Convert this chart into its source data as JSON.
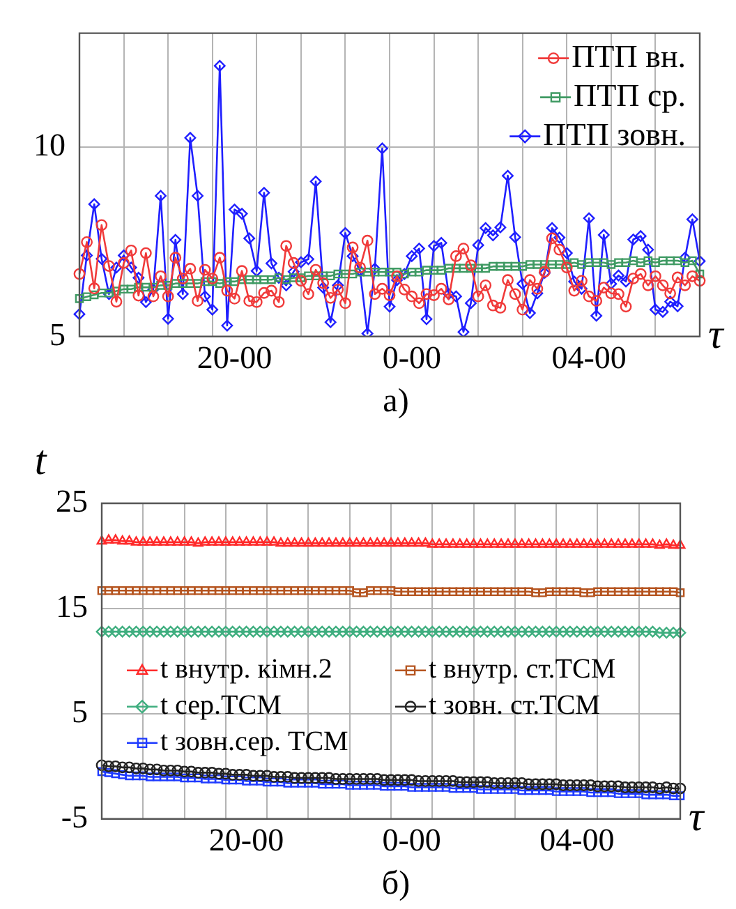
{
  "chart_data": [
    {
      "type": "line",
      "xlabel": "τ",
      "annotations": [
        "а)"
      ],
      "categories": [
        null,
        null,
        null,
        null,
        null,
        null,
        null,
        null,
        null,
        null,
        null,
        null,
        null,
        null,
        null,
        null,
        null,
        null,
        null,
        null,
        null,
        "20-00",
        null,
        null,
        null,
        null,
        null,
        null,
        null,
        null,
        null,
        null,
        null,
        null,
        null,
        null,
        null,
        null,
        null,
        null,
        null,
        null,
        null,
        null,
        null,
        "0-00",
        null,
        null,
        null,
        null,
        null,
        null,
        null,
        null,
        null,
        null,
        null,
        null,
        null,
        null,
        null,
        null,
        null,
        null,
        null,
        null,
        null,
        null,
        null,
        "04-00",
        null,
        null,
        null,
        null,
        null,
        null,
        null,
        null,
        null,
        null,
        null,
        null,
        null,
        null,
        null
      ],
      "series": [
        {
          "name": "ПТП вн.",
          "color": "#f03a3a",
          "marker": "circle",
          "values": [
            6.65,
            7.49,
            6.27,
            7.94,
            6.86,
            5.92,
            6.94,
            7.27,
            6.08,
            7.2,
            6.06,
            6.59,
            6.06,
            7.08,
            6.53,
            6.79,
            5.94,
            6.76,
            6.53,
            7.08,
            6.21,
            6.0,
            6.73,
            5.94,
            5.91,
            6.15,
            6.21,
            5.91,
            7.39,
            6.94,
            6.47,
            6.12,
            6.76,
            6.41,
            6.02,
            6.24,
            5.88,
            7.35,
            6.82,
            7.53,
            6.12,
            6.26,
            6.09,
            6.59,
            6.24,
            6.06,
            5.88,
            6.12,
            6.09,
            6.26,
            5.98,
            7.12,
            7.32,
            6.88,
            6.06,
            6.35,
            5.82,
            5.76,
            6.49,
            6.12,
            5.71,
            6.49,
            6.26,
            6.71,
            7.59,
            7.29,
            6.82,
            6.21,
            6.47,
            6.06,
            5.94,
            6.29,
            6.14,
            6.12,
            5.79,
            6.53,
            6.65,
            6.35,
            6.59,
            6.35,
            6.14,
            6.56,
            6.35,
            6.59,
            6.47
          ]
        },
        {
          "name": "ПТП ср.",
          "color": "#3f9a63",
          "marker": "square",
          "values": [
            6.0,
            6.05,
            6.1,
            6.15,
            6.15,
            6.2,
            6.25,
            6.25,
            6.3,
            6.3,
            6.3,
            6.35,
            6.35,
            6.4,
            6.4,
            6.4,
            6.4,
            6.45,
            6.45,
            6.4,
            6.45,
            6.45,
            6.5,
            6.5,
            6.5,
            6.5,
            6.5,
            6.55,
            6.5,
            6.55,
            6.55,
            6.6,
            6.6,
            6.6,
            6.6,
            6.65,
            6.65,
            6.65,
            6.7,
            6.7,
            6.7,
            6.7,
            6.7,
            6.7,
            6.65,
            6.7,
            6.7,
            6.75,
            6.75,
            6.75,
            6.8,
            6.8,
            6.8,
            6.8,
            6.8,
            6.8,
            6.85,
            6.85,
            6.85,
            6.85,
            6.85,
            6.9,
            6.9,
            6.9,
            6.9,
            6.9,
            6.9,
            6.95,
            6.9,
            6.95,
            6.95,
            6.95,
            6.9,
            6.95,
            6.95,
            7.0,
            6.95,
            7.0,
            6.95,
            7.0,
            7.0,
            7.0,
            6.95,
            7.0,
            6.65
          ]
        },
        {
          "name": "ПТП зовн.",
          "color": "#1f1fff",
          "marker": "diamond",
          "values": [
            5.59,
            7.14,
            8.49,
            7.05,
            6.12,
            6.82,
            7.14,
            6.82,
            6.55,
            5.91,
            6.24,
            8.71,
            5.47,
            7.55,
            6.12,
            10.24,
            8.71,
            6.06,
            5.71,
            12.14,
            5.29,
            8.35,
            8.24,
            7.59,
            6.73,
            8.79,
            6.93,
            6.55,
            6.35,
            6.71,
            6.96,
            7.04,
            9.09,
            6.29,
            5.38,
            6.35,
            7.73,
            7.12,
            6.73,
            5.08,
            6.79,
            9.96,
            5.79,
            6.49,
            6.65,
            7.12,
            7.32,
            5.46,
            7.39,
            7.47,
            6.12,
            6.06,
            5.12,
            5.88,
            7.41,
            7.86,
            7.67,
            7.88,
            9.24,
            7.62,
            6.39,
            5.62,
            6.14,
            6.68,
            7.86,
            7.61,
            7.2,
            6.45,
            6.26,
            8.12,
            5.55,
            7.68,
            6.39,
            6.61,
            6.45,
            7.56,
            7.65,
            7.29,
            5.71,
            5.65,
            5.92,
            5.8,
            7.08,
            8.09,
            6.99
          ]
        }
      ],
      "ylim": [
        5,
        13
      ],
      "yticks": [
        5,
        10
      ],
      "grid": true,
      "legend": "top right",
      "line_style": "solid"
    },
    {
      "type": "line",
      "xlabel": "τ",
      "ylabel": "t",
      "annotations": [
        "б)"
      ],
      "categories": [
        null,
        null,
        null,
        null,
        null,
        null,
        null,
        null,
        null,
        null,
        null,
        null,
        null,
        null,
        null,
        null,
        null,
        null,
        null,
        null,
        null,
        "20-00",
        null,
        null,
        null,
        null,
        null,
        null,
        null,
        null,
        null,
        null,
        null,
        null,
        null,
        null,
        null,
        null,
        null,
        null,
        null,
        null,
        null,
        null,
        null,
        "0-00",
        null,
        null,
        null,
        null,
        null,
        null,
        null,
        null,
        null,
        null,
        null,
        null,
        null,
        null,
        null,
        null,
        null,
        null,
        null,
        null,
        null,
        null,
        null,
        "04-00",
        null,
        null,
        null,
        null,
        null,
        null,
        null,
        null,
        null,
        null,
        null,
        null,
        null,
        null,
        null
      ],
      "series": [
        {
          "name": "t внутр. кімн.2",
          "color": "#ff2a2a",
          "marker": "triangle",
          "values": [
            21.4,
            21.5,
            21.5,
            21.4,
            21.4,
            21.3,
            21.3,
            21.3,
            21.3,
            21.3,
            21.3,
            21.3,
            21.3,
            21.3,
            21.2,
            21.3,
            21.3,
            21.3,
            21.3,
            21.3,
            21.3,
            21.3,
            21.3,
            21.3,
            21.3,
            21.3,
            21.2,
            21.2,
            21.2,
            21.2,
            21.2,
            21.2,
            21.2,
            21.2,
            21.2,
            21.2,
            21.2,
            21.2,
            21.2,
            21.2,
            21.2,
            21.2,
            21.2,
            21.2,
            21.2,
            21.2,
            21.2,
            21.2,
            21.1,
            21.1,
            21.1,
            21.1,
            21.1,
            21.1,
            21.1,
            21.1,
            21.1,
            21.1,
            21.1,
            21.1,
            21.1,
            21.1,
            21.1,
            21.1,
            21.1,
            21.1,
            21.1,
            21.1,
            21.1,
            21.1,
            21.1,
            21.1,
            21.1,
            21.1,
            21.1,
            21.1,
            21.1,
            21.1,
            21.1,
            21.1,
            21.1,
            21.0,
            21.1,
            21.0,
            21.0
          ]
        },
        {
          "name": "t внутр. ст.ТСМ",
          "color": "#b5541f",
          "marker": "square",
          "values": [
            16.7,
            16.7,
            16.7,
            16.7,
            16.7,
            16.7,
            16.7,
            16.7,
            16.7,
            16.7,
            16.7,
            16.7,
            16.7,
            16.7,
            16.7,
            16.7,
            16.7,
            16.7,
            16.7,
            16.7,
            16.7,
            16.7,
            16.7,
            16.7,
            16.7,
            16.7,
            16.7,
            16.7,
            16.7,
            16.7,
            16.7,
            16.7,
            16.7,
            16.7,
            16.7,
            16.7,
            16.7,
            16.5,
            16.5,
            16.7,
            16.7,
            16.7,
            16.7,
            16.6,
            16.6,
            16.6,
            16.6,
            16.6,
            16.6,
            16.6,
            16.6,
            16.6,
            16.6,
            16.6,
            16.6,
            16.6,
            16.6,
            16.6,
            16.6,
            16.6,
            16.6,
            16.6,
            16.6,
            16.5,
            16.5,
            16.6,
            16.6,
            16.6,
            16.6,
            16.6,
            16.5,
            16.5,
            16.6,
            16.6,
            16.6,
            16.6,
            16.6,
            16.6,
            16.6,
            16.6,
            16.6,
            16.6,
            16.6,
            16.6,
            16.5
          ]
        },
        {
          "name": "t сер.ТСМ",
          "color": "#3fae7f",
          "marker": "diamond",
          "values": [
            12.8,
            12.8,
            12.8,
            12.8,
            12.8,
            12.8,
            12.8,
            12.8,
            12.8,
            12.8,
            12.8,
            12.8,
            12.8,
            12.8,
            12.8,
            12.8,
            12.8,
            12.8,
            12.8,
            12.8,
            12.8,
            12.8,
            12.8,
            12.8,
            12.8,
            12.8,
            12.8,
            12.8,
            12.8,
            12.8,
            12.8,
            12.8,
            12.8,
            12.8,
            12.8,
            12.8,
            12.8,
            12.8,
            12.8,
            12.8,
            12.8,
            12.8,
            12.8,
            12.8,
            12.8,
            12.8,
            12.8,
            12.8,
            12.8,
            12.8,
            12.8,
            12.8,
            12.8,
            12.8,
            12.8,
            12.8,
            12.8,
            12.8,
            12.8,
            12.8,
            12.8,
            12.8,
            12.8,
            12.8,
            12.8,
            12.8,
            12.8,
            12.8,
            12.8,
            12.8,
            12.8,
            12.8,
            12.8,
            12.8,
            12.8,
            12.8,
            12.8,
            12.8,
            12.8,
            12.8,
            12.8,
            12.7,
            12.7,
            12.7,
            12.7
          ]
        },
        {
          "name": "t зовн. ст.ТСМ",
          "color": "#222222",
          "marker": "circle",
          "values": [
            0.1,
            0.0,
            0.0,
            -0.1,
            -0.1,
            -0.2,
            -0.2,
            -0.3,
            -0.3,
            -0.4,
            -0.4,
            -0.4,
            -0.5,
            -0.5,
            -0.6,
            -0.6,
            -0.6,
            -0.7,
            -0.7,
            -0.8,
            -0.8,
            -0.8,
            -0.9,
            -0.9,
            -0.9,
            -1.0,
            -1.0,
            -1.0,
            -1.1,
            -1.1,
            -1.1,
            -1.1,
            -1.1,
            -1.1,
            -1.2,
            -1.2,
            -1.2,
            -1.2,
            -1.2,
            -1.2,
            -1.2,
            -1.3,
            -1.3,
            -1.3,
            -1.3,
            -1.3,
            -1.4,
            -1.4,
            -1.4,
            -1.4,
            -1.4,
            -1.4,
            -1.5,
            -1.5,
            -1.5,
            -1.5,
            -1.5,
            -1.6,
            -1.6,
            -1.6,
            -1.6,
            -1.6,
            -1.7,
            -1.7,
            -1.7,
            -1.7,
            -1.7,
            -1.8,
            -1.8,
            -1.8,
            -1.8,
            -1.8,
            -1.9,
            -1.9,
            -1.9,
            -1.9,
            -2.0,
            -2.0,
            -2.0,
            -2.0,
            -2.0,
            -2.1,
            -2.0,
            -2.1,
            -2.1
          ]
        },
        {
          "name": "t зовн.сер. ТСМ",
          "color": "#1f3bff",
          "marker": "square",
          "values": [
            -0.5,
            -0.6,
            -0.7,
            -0.8,
            -0.9,
            -0.9,
            -0.9,
            -1.0,
            -1.0,
            -1.0,
            -1.0,
            -1.0,
            -1.1,
            -1.1,
            -1.1,
            -1.2,
            -1.2,
            -1.2,
            -1.3,
            -1.3,
            -1.3,
            -1.4,
            -1.4,
            -1.4,
            -1.5,
            -1.5,
            -1.5,
            -1.6,
            -1.6,
            -1.6,
            -1.6,
            -1.6,
            -1.7,
            -1.7,
            -1.7,
            -1.7,
            -1.8,
            -1.8,
            -1.8,
            -1.8,
            -1.8,
            -1.9,
            -1.9,
            -1.9,
            -1.9,
            -2.0,
            -2.0,
            -2.0,
            -2.0,
            -2.0,
            -2.0,
            -2.1,
            -2.1,
            -2.1,
            -2.1,
            -2.2,
            -2.2,
            -2.2,
            -2.2,
            -2.2,
            -2.2,
            -2.3,
            -2.3,
            -2.3,
            -2.3,
            -2.3,
            -2.4,
            -2.4,
            -2.4,
            -2.4,
            -2.4,
            -2.5,
            -2.5,
            -2.5,
            -2.5,
            -2.6,
            -2.6,
            -2.6,
            -2.6,
            -2.7,
            -2.7,
            -2.7,
            -2.7,
            -2.8,
            -2.8
          ]
        }
      ],
      "ylim": [
        -5,
        25
      ],
      "yticks": [
        -5,
        5,
        15,
        25
      ],
      "grid": true,
      "legend": "left",
      "line_style": "solid"
    }
  ]
}
